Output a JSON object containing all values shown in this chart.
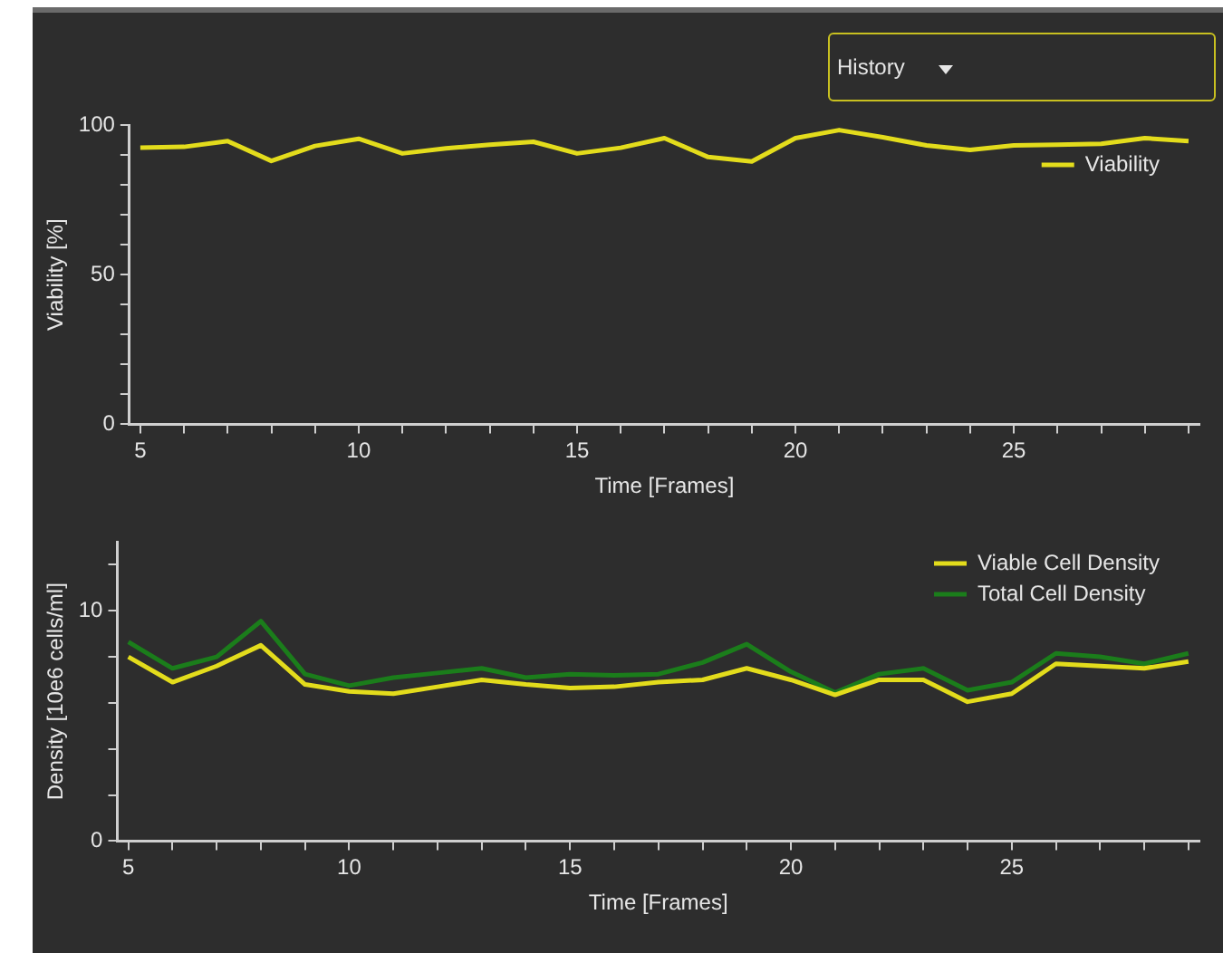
{
  "chart_data": [
    {
      "type": "line",
      "xlabel": "Time [Frames]",
      "ylabel": "Viability [%]",
      "annotations": [
        "History"
      ],
      "x": [
        5,
        6,
        7,
        8,
        9,
        10,
        11,
        12,
        13,
        14,
        15,
        16,
        17,
        18,
        19,
        20,
        21,
        22,
        23,
        24,
        25,
        26,
        27,
        28,
        29
      ],
      "series": [
        {
          "name": "Viability",
          "color": "#e3dc1c",
          "values": [
            92.4,
            92.7,
            94.6,
            88,
            93,
            95.4,
            90.5,
            92.2,
            93.4,
            94.4,
            90.5,
            92.4,
            95.6,
            89.3,
            87.8,
            95.6,
            98.3,
            95.9,
            93.2,
            91.7,
            93.2,
            93.4,
            93.7,
            95.6,
            94.6
          ]
        }
      ],
      "xlim": [
        4.75,
        29.25
      ],
      "ylim": [
        0,
        100
      ],
      "xticks": [
        5,
        {
          "value": 6,
          "label": null
        },
        {
          "value": 7,
          "label": null
        },
        {
          "value": 8,
          "label": null
        },
        {
          "value": 9,
          "label": null
        },
        10,
        {
          "value": 11,
          "label": null
        },
        {
          "value": 12,
          "label": null
        },
        {
          "value": 13,
          "label": null
        },
        {
          "value": 14,
          "label": null
        },
        15,
        {
          "value": 16,
          "label": null
        },
        {
          "value": 17,
          "label": null
        },
        {
          "value": 18,
          "label": null
        },
        {
          "value": 19,
          "label": null
        },
        20,
        {
          "value": 21,
          "label": null
        },
        {
          "value": 22,
          "label": null
        },
        {
          "value": 23,
          "label": null
        },
        {
          "value": 24,
          "label": null
        },
        25,
        {
          "value": 26,
          "label": null
        },
        {
          "value": 27,
          "label": null
        },
        {
          "value": 28,
          "label": null
        },
        {
          "value": 29,
          "label": null
        }
      ],
      "yticks": [
        0,
        {
          "value": 10,
          "label": null
        },
        {
          "value": 20,
          "label": null
        },
        {
          "value": 30,
          "label": null
        },
        {
          "value": 40,
          "label": null
        },
        50,
        {
          "value": 60,
          "label": null
        },
        {
          "value": 70,
          "label": null
        },
        {
          "value": 80,
          "label": null
        },
        {
          "value": 90,
          "label": null
        },
        100
      ],
      "grid": false,
      "legend": "top right",
      "marker": "none",
      "line_style": "solid"
    },
    {
      "type": "line",
      "xlabel": "Time [Frames]",
      "ylabel": "Density [10e6 cells/ml]",
      "x": [
        5,
        6,
        7,
        8,
        9,
        10,
        11,
        12,
        13,
        14,
        15,
        16,
        17,
        18,
        19,
        20,
        21,
        22,
        23,
        24,
        25,
        26,
        27,
        28,
        29
      ],
      "series": [
        {
          "name": "Viable Cell Density",
          "color": "#e3dc1c",
          "values": [
            8.0,
            6.9,
            7.6,
            8.5,
            6.8,
            6.5,
            6.4,
            6.7,
            7.0,
            6.8,
            6.65,
            6.7,
            6.9,
            7.0,
            7.5,
            7.0,
            6.35,
            7.0,
            7.0,
            6.05,
            6.4,
            7.7,
            7.6,
            7.5,
            7.8
          ]
        },
        {
          "name": "Total Cell Density",
          "color": "#1b7d1b",
          "values": [
            8.65,
            7.5,
            8.0,
            9.55,
            7.25,
            6.75,
            7.1,
            7.3,
            7.5,
            7.1,
            7.25,
            7.2,
            7.25,
            7.75,
            8.55,
            7.35,
            6.45,
            7.25,
            7.5,
            6.55,
            6.9,
            8.15,
            8.0,
            7.7,
            8.15
          ]
        }
      ],
      "xlim": [
        4.75,
        29.25
      ],
      "ylim": [
        0,
        13
      ],
      "xticks": [
        5,
        {
          "value": 6,
          "label": null
        },
        {
          "value": 7,
          "label": null
        },
        {
          "value": 8,
          "label": null
        },
        {
          "value": 9,
          "label": null
        },
        10,
        {
          "value": 11,
          "label": null
        },
        {
          "value": 12,
          "label": null
        },
        {
          "value": 13,
          "label": null
        },
        {
          "value": 14,
          "label": null
        },
        15,
        {
          "value": 16,
          "label": null
        },
        {
          "value": 17,
          "label": null
        },
        {
          "value": 18,
          "label": null
        },
        {
          "value": 19,
          "label": null
        },
        20,
        {
          "value": 21,
          "label": null
        },
        {
          "value": 22,
          "label": null
        },
        {
          "value": 23,
          "label": null
        },
        {
          "value": 24,
          "label": null
        },
        25,
        {
          "value": 26,
          "label": null
        },
        {
          "value": 27,
          "label": null
        },
        {
          "value": 28,
          "label": null
        },
        {
          "value": 29,
          "label": null
        }
      ],
      "yticks": [
        0,
        {
          "value": 2,
          "label": null
        },
        {
          "value": 4,
          "label": null
        },
        {
          "value": 6,
          "label": null
        },
        {
          "value": 8,
          "label": null
        },
        10,
        {
          "value": 12,
          "label": null
        }
      ],
      "grid": false,
      "legend": "top right",
      "marker": "none",
      "line_style": "solid"
    }
  ]
}
